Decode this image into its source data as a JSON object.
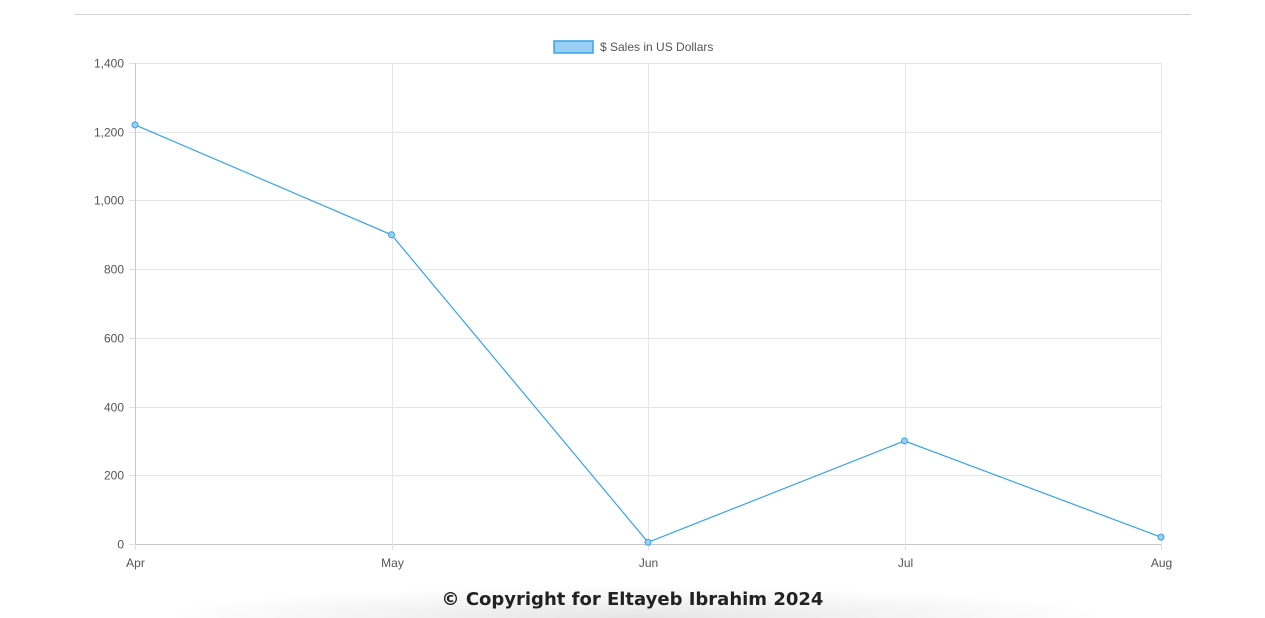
{
  "chart_data": {
    "type": "line",
    "categories": [
      "Apr",
      "May",
      "Jun",
      "Jul",
      "Aug"
    ],
    "series": [
      {
        "name": "$ Sales in US Dollars",
        "values": [
          1220,
          900,
          5,
          300,
          20
        ],
        "color": "#36a2eb",
        "fill_color": "#9ad0f5"
      }
    ],
    "ylim": [
      0,
      1400
    ],
    "yticks": [
      0,
      200,
      400,
      600,
      800,
      1000,
      1200,
      1400
    ],
    "ytick_labels": [
      "0",
      "200",
      "400",
      "600",
      "800",
      "1,000",
      "1,200",
      "1,400"
    ],
    "grid": true,
    "legend_position": "top-center"
  },
  "footer": {
    "text": "© Copyright for Eltayeb Ibrahim 2024"
  }
}
